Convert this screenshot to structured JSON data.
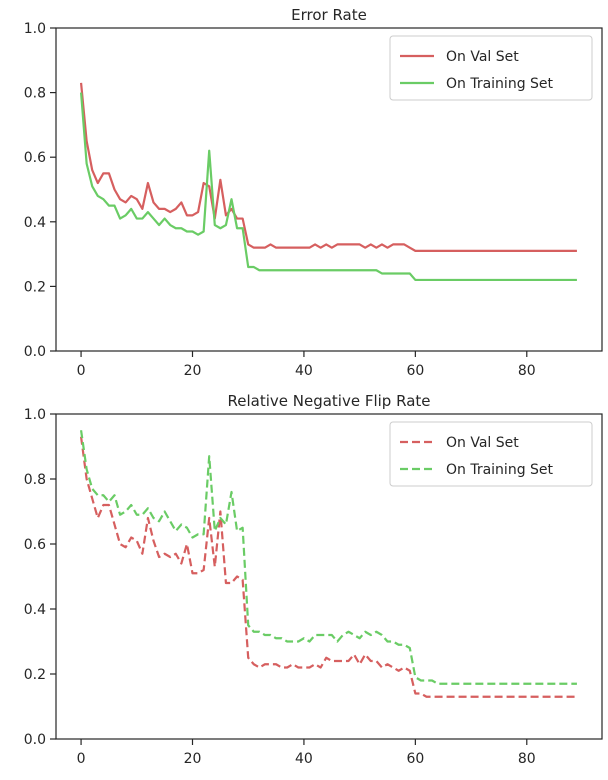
{
  "chart_data": [
    {
      "type": "line",
      "title": "Error Rate",
      "xlabel": "",
      "ylabel": "",
      "xlim": [
        -4.5,
        93.5
      ],
      "ylim": [
        0.0,
        1.0
      ],
      "xticks": [
        "0",
        "20",
        "40",
        "60",
        "80"
      ],
      "xtick_values": [
        0,
        20,
        40,
        60,
        80
      ],
      "yticks": [
        "0.0",
        "0.2",
        "0.4",
        "0.6",
        "0.8",
        "1.0"
      ],
      "ytick_values": [
        0.0,
        0.2,
        0.4,
        0.6,
        0.8,
        1.0
      ],
      "grid": false,
      "legend_position": "top-right",
      "line_style": "solid",
      "x": [
        0,
        1,
        2,
        3,
        4,
        5,
        6,
        7,
        8,
        9,
        10,
        11,
        12,
        13,
        14,
        15,
        16,
        17,
        18,
        19,
        20,
        21,
        22,
        23,
        24,
        25,
        26,
        27,
        28,
        29,
        30,
        31,
        32,
        33,
        34,
        35,
        36,
        37,
        38,
        39,
        40,
        41,
        42,
        43,
        44,
        45,
        46,
        47,
        48,
        49,
        50,
        51,
        52,
        53,
        54,
        55,
        56,
        57,
        58,
        59,
        60,
        61,
        62,
        63,
        64,
        65,
        66,
        67,
        68,
        69,
        70,
        71,
        72,
        73,
        74,
        75,
        76,
        77,
        78,
        79,
        80,
        81,
        82,
        83,
        84,
        85,
        86,
        87,
        88,
        89
      ],
      "series": [
        {
          "name": "On Val Set",
          "color": "#d65f5f",
          "values": [
            0.83,
            0.65,
            0.56,
            0.52,
            0.55,
            0.55,
            0.5,
            0.47,
            0.46,
            0.48,
            0.47,
            0.44,
            0.52,
            0.46,
            0.44,
            0.44,
            0.43,
            0.44,
            0.46,
            0.42,
            0.42,
            0.43,
            0.52,
            0.51,
            0.41,
            0.53,
            0.42,
            0.44,
            0.41,
            0.41,
            0.33,
            0.32,
            0.32,
            0.32,
            0.33,
            0.32,
            0.32,
            0.32,
            0.32,
            0.32,
            0.32,
            0.32,
            0.33,
            0.32,
            0.33,
            0.32,
            0.33,
            0.33,
            0.33,
            0.33,
            0.33,
            0.32,
            0.33,
            0.32,
            0.33,
            0.32,
            0.33,
            0.33,
            0.33,
            0.32,
            0.31,
            0.31,
            0.31,
            0.31,
            0.31,
            0.31,
            0.31,
            0.31,
            0.31,
            0.31,
            0.31,
            0.31,
            0.31,
            0.31,
            0.31,
            0.31,
            0.31,
            0.31,
            0.31,
            0.31,
            0.31,
            0.31,
            0.31,
            0.31,
            0.31,
            0.31,
            0.31,
            0.31,
            0.31,
            0.31
          ]
        },
        {
          "name": "On Training Set",
          "color": "#6acc65",
          "values": [
            0.8,
            0.58,
            0.51,
            0.48,
            0.47,
            0.45,
            0.45,
            0.41,
            0.42,
            0.44,
            0.41,
            0.41,
            0.43,
            0.41,
            0.39,
            0.41,
            0.39,
            0.38,
            0.38,
            0.37,
            0.37,
            0.36,
            0.37,
            0.62,
            0.39,
            0.38,
            0.39,
            0.47,
            0.38,
            0.38,
            0.26,
            0.26,
            0.25,
            0.25,
            0.25,
            0.25,
            0.25,
            0.25,
            0.25,
            0.25,
            0.25,
            0.25,
            0.25,
            0.25,
            0.25,
            0.25,
            0.25,
            0.25,
            0.25,
            0.25,
            0.25,
            0.25,
            0.25,
            0.25,
            0.24,
            0.24,
            0.24,
            0.24,
            0.24,
            0.24,
            0.22,
            0.22,
            0.22,
            0.22,
            0.22,
            0.22,
            0.22,
            0.22,
            0.22,
            0.22,
            0.22,
            0.22,
            0.22,
            0.22,
            0.22,
            0.22,
            0.22,
            0.22,
            0.22,
            0.22,
            0.22,
            0.22,
            0.22,
            0.22,
            0.22,
            0.22,
            0.22,
            0.22,
            0.22,
            0.22
          ]
        }
      ]
    },
    {
      "type": "line",
      "title": "Relative Negative Flip Rate",
      "xlabel": "",
      "ylabel": "",
      "xlim": [
        -4.5,
        93.5
      ],
      "ylim": [
        0.0,
        1.0
      ],
      "xticks": [
        "0",
        "20",
        "40",
        "60",
        "80"
      ],
      "xtick_values": [
        0,
        20,
        40,
        60,
        80
      ],
      "yticks": [
        "0.0",
        "0.2",
        "0.4",
        "0.6",
        "0.8",
        "1.0"
      ],
      "ytick_values": [
        0.0,
        0.2,
        0.4,
        0.6,
        0.8,
        1.0
      ],
      "grid": false,
      "legend_position": "top-right",
      "line_style": "dashed",
      "x": [
        0,
        1,
        2,
        3,
        4,
        5,
        6,
        7,
        8,
        9,
        10,
        11,
        12,
        13,
        14,
        15,
        16,
        17,
        18,
        19,
        20,
        21,
        22,
        23,
        24,
        25,
        26,
        27,
        28,
        29,
        30,
        31,
        32,
        33,
        34,
        35,
        36,
        37,
        38,
        39,
        40,
        41,
        42,
        43,
        44,
        45,
        46,
        47,
        48,
        49,
        50,
        51,
        52,
        53,
        54,
        55,
        56,
        57,
        58,
        59,
        60,
        61,
        62,
        63,
        64,
        65,
        66,
        67,
        68,
        69,
        70,
        71,
        72,
        73,
        74,
        75,
        76,
        77,
        78,
        79,
        80,
        81,
        82,
        83,
        84,
        85,
        86,
        87,
        88,
        89
      ],
      "series": [
        {
          "name": "On Val Set",
          "color": "#d65f5f",
          "values": [
            0.93,
            0.8,
            0.74,
            0.68,
            0.72,
            0.72,
            0.66,
            0.6,
            0.59,
            0.62,
            0.61,
            0.57,
            0.68,
            0.61,
            0.56,
            0.57,
            0.56,
            0.57,
            0.54,
            0.6,
            0.51,
            0.51,
            0.52,
            0.68,
            0.53,
            0.7,
            0.48,
            0.48,
            0.5,
            0.49,
            0.25,
            0.23,
            0.22,
            0.23,
            0.23,
            0.23,
            0.22,
            0.22,
            0.23,
            0.22,
            0.22,
            0.22,
            0.23,
            0.22,
            0.25,
            0.24,
            0.24,
            0.24,
            0.24,
            0.26,
            0.23,
            0.26,
            0.24,
            0.24,
            0.22,
            0.23,
            0.22,
            0.21,
            0.22,
            0.21,
            0.14,
            0.14,
            0.13,
            0.13,
            0.13,
            0.13,
            0.13,
            0.13,
            0.13,
            0.13,
            0.13,
            0.13,
            0.13,
            0.13,
            0.13,
            0.13,
            0.13,
            0.13,
            0.13,
            0.13,
            0.13,
            0.13,
            0.13,
            0.13,
            0.13,
            0.13,
            0.13,
            0.13,
            0.13,
            0.13
          ]
        },
        {
          "name": "On Training Set",
          "color": "#6acc65",
          "values": [
            0.95,
            0.83,
            0.77,
            0.75,
            0.75,
            0.73,
            0.75,
            0.69,
            0.7,
            0.72,
            0.69,
            0.69,
            0.71,
            0.68,
            0.67,
            0.7,
            0.67,
            0.64,
            0.66,
            0.65,
            0.62,
            0.63,
            0.63,
            0.87,
            0.64,
            0.68,
            0.66,
            0.76,
            0.64,
            0.65,
            0.35,
            0.33,
            0.33,
            0.32,
            0.32,
            0.31,
            0.31,
            0.3,
            0.3,
            0.3,
            0.31,
            0.3,
            0.32,
            0.32,
            0.32,
            0.32,
            0.3,
            0.32,
            0.33,
            0.32,
            0.31,
            0.33,
            0.32,
            0.33,
            0.32,
            0.3,
            0.3,
            0.29,
            0.29,
            0.28,
            0.19,
            0.18,
            0.18,
            0.18,
            0.17,
            0.17,
            0.17,
            0.17,
            0.17,
            0.17,
            0.17,
            0.17,
            0.17,
            0.17,
            0.17,
            0.17,
            0.17,
            0.17,
            0.17,
            0.17,
            0.17,
            0.17,
            0.17,
            0.17,
            0.17,
            0.17,
            0.17,
            0.17,
            0.17,
            0.17
          ]
        }
      ]
    }
  ]
}
